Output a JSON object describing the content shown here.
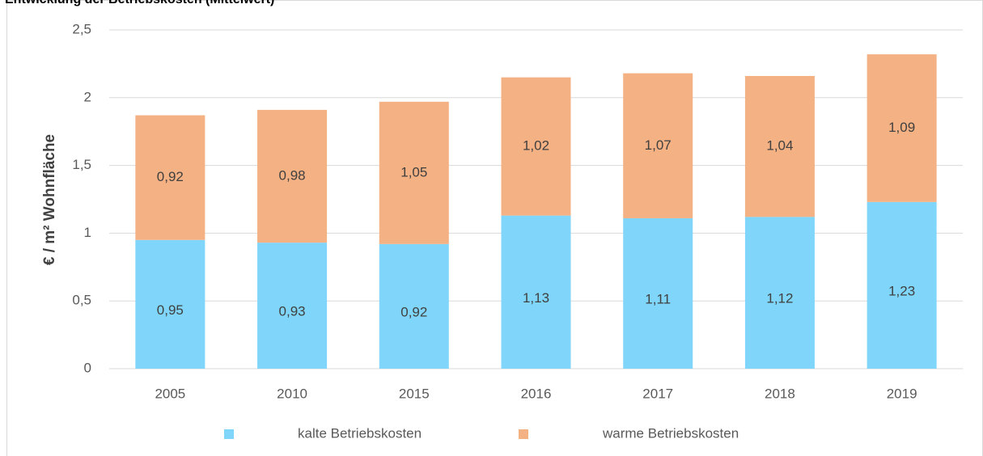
{
  "chart_data": {
    "type": "stacked_bar",
    "title": "Entwicklung der Betriebskosten (Mittelwert)",
    "ylabel": "€ / m² Wohnfläche",
    "categories": [
      "2005",
      "2010",
      "2015",
      "2016",
      "2017",
      "2018",
      "2019"
    ],
    "series": [
      {
        "name": "kalte Betriebskosten",
        "color": "#7fd6fa",
        "values": [
          0.95,
          0.93,
          0.92,
          1.13,
          1.11,
          1.12,
          1.23
        ],
        "value_labels": [
          "0,95",
          "0,93",
          "0,92",
          "1,13",
          "1,11",
          "1,12",
          "1,23"
        ]
      },
      {
        "name": "warme Betriebskosten",
        "color": "#f4b183",
        "values": [
          0.92,
          0.98,
          1.05,
          1.02,
          1.07,
          1.04,
          1.09
        ],
        "value_labels": [
          "0,92",
          "0,98",
          "1,05",
          "1,02",
          "1,07",
          "1,04",
          "1,09"
        ]
      }
    ],
    "ylim": [
      0,
      2.5
    ],
    "yticks": [
      0,
      {
        "value": 0.5,
        "label": "0,5"
      },
      1,
      {
        "value": 1.5,
        "label": "1,5"
      },
      2,
      {
        "value": 2.5,
        "label": "2,5"
      }
    ],
    "grid": true,
    "legend": "bottom"
  }
}
